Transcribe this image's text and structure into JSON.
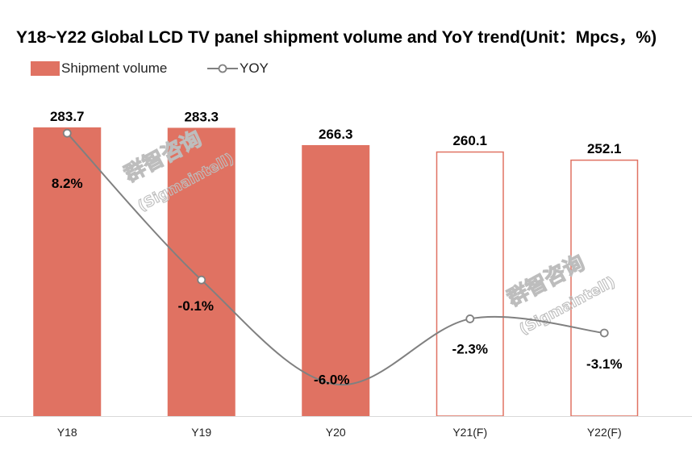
{
  "colors": {
    "bar_actual": "#e07262",
    "bar_forecast_stroke": "#e07262",
    "yoy_line": "#808080"
  },
  "legend": {
    "bar": "Shipment volume",
    "line": "YOY"
  },
  "watermark": {
    "cn": "群智咨询",
    "en": "(Sigmaintell)"
  },
  "chart_data": {
    "type": "bar",
    "title": "Y18~Y22 Global LCD TV panel shipment volume and YoY trend(Unit：Mpcs，%)",
    "categories": [
      "Y18",
      "Y19",
      "Y20",
      "Y21(F)",
      "Y22(F)"
    ],
    "series": [
      {
        "name": "Shipment volume",
        "type": "bar",
        "values": [
          283.7,
          283.3,
          266.3,
          260.1,
          252.1
        ],
        "value_labels": [
          "283.7",
          "283.3",
          "266.3",
          "260.1",
          "252.1"
        ],
        "forecast": [
          false,
          false,
          false,
          true,
          true
        ]
      },
      {
        "name": "YOY",
        "type": "line",
        "values": [
          8.2,
          -0.1,
          -6.0,
          -2.3,
          -3.1
        ],
        "value_labels": [
          "8.2%",
          "-0.1%",
          "-6.0%",
          "-2.3%",
          "-3.1%"
        ],
        "markers": [
          true,
          true,
          false,
          true,
          true
        ]
      }
    ],
    "grid": false,
    "legend_position": "top-left"
  }
}
